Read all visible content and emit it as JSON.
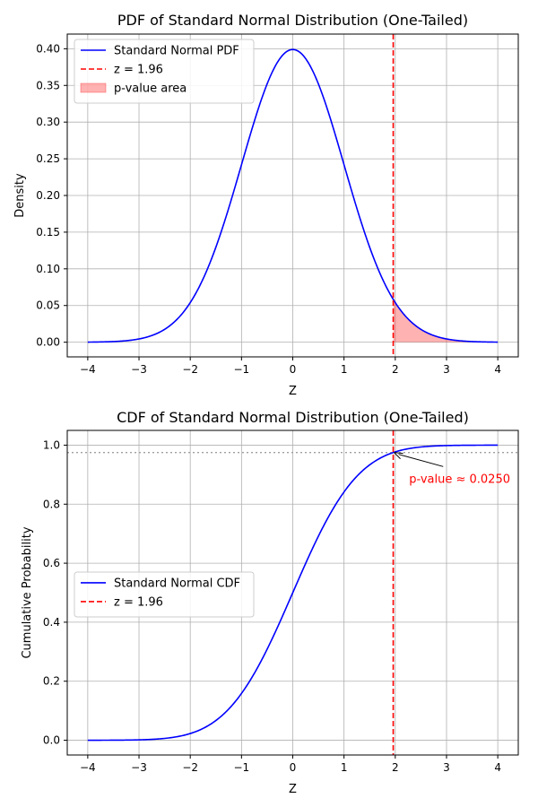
{
  "chart_data": [
    {
      "type": "area",
      "title": "PDF of Standard Normal Distribution (One-Tailed)",
      "xlabel": "Z",
      "ylabel": "Density",
      "xlim": [
        -4.4,
        4.4
      ],
      "ylim": [
        -0.02,
        0.42
      ],
      "xticks": [
        -4,
        -3,
        -2,
        -1,
        0,
        1,
        2,
        3,
        4
      ],
      "yticks": [
        0.0,
        0.05,
        0.1,
        0.15,
        0.2,
        0.25,
        0.3,
        0.35,
        0.4
      ],
      "ytick_labels": [
        "0.00",
        "0.05",
        "0.10",
        "0.15",
        "0.20",
        "0.25",
        "0.30",
        "0.35",
        "0.40"
      ],
      "grid": true,
      "legend_position": "upper-left",
      "series": [
        {
          "name": "Standard Normal PDF",
          "kind": "line",
          "color": "#0000ff",
          "function": "normal_pdf",
          "x_range": [
            -4,
            4
          ]
        },
        {
          "name": "z = 1.96",
          "kind": "vline",
          "color": "#ff0000",
          "x": 1.96
        },
        {
          "name": "p-value area",
          "kind": "fill",
          "color": "#ff0000",
          "x_range": [
            1.96,
            4
          ]
        }
      ]
    },
    {
      "type": "line",
      "title": "CDF of Standard Normal Distribution (One-Tailed)",
      "xlabel": "Z",
      "ylabel": "Cumulative Probability",
      "xlim": [
        -4.4,
        4.4
      ],
      "ylim": [
        -0.05,
        1.05
      ],
      "xticks": [
        -4,
        -3,
        -2,
        -1,
        0,
        1,
        2,
        3,
        4
      ],
      "yticks": [
        0.0,
        0.2,
        0.4,
        0.6,
        0.8,
        1.0
      ],
      "ytick_labels": [
        "0.0",
        "0.2",
        "0.4",
        "0.6",
        "0.8",
        "1.0"
      ],
      "grid": true,
      "legend_position": "center-left",
      "hline": {
        "y": 0.975,
        "color": "#a0a0a0"
      },
      "series": [
        {
          "name": "Standard Normal CDF",
          "kind": "line",
          "color": "#0000ff",
          "function": "normal_cdf",
          "x_range": [
            -4,
            4
          ]
        },
        {
          "name": "z = 1.96",
          "kind": "vline",
          "color": "#ff0000",
          "x": 1.96
        }
      ],
      "annotation": {
        "text": "p-value ≈ 0.0250",
        "point": [
          1.96,
          0.975
        ],
        "text_at": [
          2.27,
          0.885
        ],
        "color": "#ff0000"
      }
    }
  ]
}
